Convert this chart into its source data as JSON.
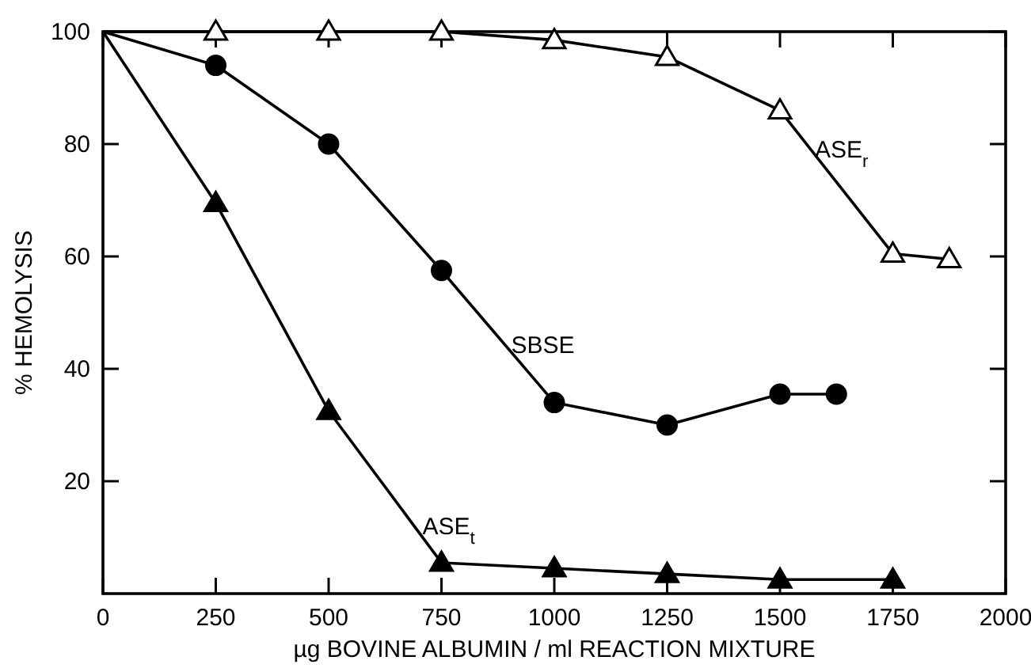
{
  "chart_data": {
    "type": "line",
    "xlabel": "µg BOVINE ALBUMIN / ml REACTION MIXTURE",
    "ylabel": "% HEMOLYSIS",
    "xlim": [
      0,
      2000
    ],
    "ylim": [
      0,
      100
    ],
    "xticks": [
      0,
      250,
      500,
      750,
      1000,
      1250,
      1500,
      1750,
      2000
    ],
    "yticks": [
      20,
      40,
      60,
      80,
      100
    ],
    "grid": false,
    "line_style": "solid",
    "series": [
      {
        "name": "ASE$_{r}$",
        "color": "#000000",
        "marker": "triangle",
        "x": [
          0,
          250,
          500,
          750,
          1000,
          1250,
          1500,
          1750,
          1875
        ],
        "values": [
          100,
          100,
          100,
          100,
          98.5,
          95.5,
          86,
          60.5,
          59.5
        ]
      },
      {
        "name": "SBSE",
        "color": "#000000",
        "marker": "circle",
        "x": [
          0,
          250,
          500,
          750,
          1000,
          1250,
          1500,
          1625
        ],
        "values": [
          100,
          94,
          80,
          57.5,
          34,
          30,
          35.5,
          35.5
        ]
      },
      {
        "name": "ASE$_{t}$",
        "color": "#000000",
        "marker": "triangle",
        "x": [
          0,
          250,
          500,
          750,
          1000,
          1250,
          1500,
          1750
        ],
        "values": [
          100,
          69.5,
          32.5,
          5.5,
          4.5,
          3.5,
          2.5,
          2.5
        ]
      }
    ]
  }
}
